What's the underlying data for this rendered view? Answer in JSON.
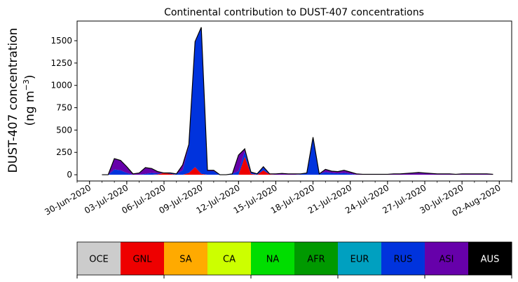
{
  "chart_data": {
    "type": "area",
    "stacked": true,
    "title": "Continental contribution to DUST-407 concentrations",
    "ylabel_line1": "DUST-407 concentration",
    "ylabel_line2": "(ng m",
    "ylabel_exp": "−3",
    "ylabel_close": ")",
    "xlabel": "",
    "ylim": [
      -70,
      1720
    ],
    "y_ticks": [
      0,
      250,
      500,
      750,
      1000,
      1250,
      1500
    ],
    "x_range": [
      "2020-06-29",
      "2020-08-03"
    ],
    "x_tick_labels": [
      "30-Jun-2020",
      "03-Jul-2020",
      "06-Jul-2020",
      "09-Jul-2020",
      "12-Jul-2020",
      "15-Jul-2020",
      "18-Jul-2020",
      "21-Jul-2020",
      "24-Jul-2020",
      "27-Jul-2020",
      "30-Jul-2020",
      "02-Aug-2020"
    ],
    "x_tick_dates": [
      "2020-06-30",
      "2020-07-03",
      "2020-07-06",
      "2020-07-09",
      "2020-07-12",
      "2020-07-15",
      "2020-07-18",
      "2020-07-21",
      "2020-07-24",
      "2020-07-27",
      "2020-07-30",
      "2020-08-02"
    ],
    "x": [
      "2020-07-01",
      "2020-07-01T12:00",
      "2020-07-02",
      "2020-07-02T12:00",
      "2020-07-03",
      "2020-07-03T12:00",
      "2020-07-04",
      "2020-07-04T12:00",
      "2020-07-05",
      "2020-07-05T12:00",
      "2020-07-06",
      "2020-07-06T12:00",
      "2020-07-07",
      "2020-07-07T12:00",
      "2020-07-08",
      "2020-07-08T12:00",
      "2020-07-09",
      "2020-07-09T12:00",
      "2020-07-10",
      "2020-07-10T12:00",
      "2020-07-11",
      "2020-07-11T12:00",
      "2020-07-12",
      "2020-07-12T12:00",
      "2020-07-13",
      "2020-07-13T12:00",
      "2020-07-14",
      "2020-07-14T12:00",
      "2020-07-15",
      "2020-07-15T12:00",
      "2020-07-16",
      "2020-07-16T12:00",
      "2020-07-17",
      "2020-07-17T12:00",
      "2020-07-18",
      "2020-07-18T12:00",
      "2020-07-19",
      "2020-07-19T12:00",
      "2020-07-20",
      "2020-07-20T12:00",
      "2020-07-21",
      "2020-07-21T12:00",
      "2020-07-22",
      "2020-07-22T12:00",
      "2020-07-23",
      "2020-07-23T12:00",
      "2020-07-24",
      "2020-07-24T12:00",
      "2020-07-25",
      "2020-07-25T12:00",
      "2020-07-26",
      "2020-07-26T12:00",
      "2020-07-27",
      "2020-07-27T12:00",
      "2020-07-28",
      "2020-07-28T12:00",
      "2020-07-29",
      "2020-07-29T12:00",
      "2020-07-30",
      "2020-07-30T12:00",
      "2020-07-31",
      "2020-07-31T12:00",
      "2020-08-01",
      "2020-08-01T12:00"
    ],
    "series": [
      {
        "name": "OCE",
        "color": "#cccccc",
        "values": [
          0,
          0,
          0,
          0,
          0,
          0,
          0,
          0,
          0,
          0,
          0,
          0,
          0,
          0,
          0,
          0,
          0,
          0,
          0,
          0,
          0,
          0,
          0,
          0,
          0,
          0,
          0,
          0,
          0,
          0,
          0,
          0,
          0,
          0,
          0,
          0,
          0,
          0,
          0,
          0,
          0,
          0,
          0,
          0,
          0,
          0,
          0,
          0,
          0,
          0,
          0,
          0,
          0,
          0,
          0,
          0,
          0,
          0,
          0,
          0,
          0,
          0,
          0,
          0
        ]
      },
      {
        "name": "GNL",
        "color": "#ee0000",
        "values": [
          0,
          0,
          0,
          0,
          0,
          0,
          0,
          0,
          0,
          5,
          20,
          10,
          0,
          0,
          20,
          85,
          10,
          0,
          0,
          0,
          0,
          0,
          0,
          200,
          10,
          0,
          50,
          5,
          0,
          0,
          0,
          0,
          0,
          0,
          0,
          0,
          0,
          0,
          0,
          0,
          0,
          0,
          0,
          0,
          0,
          0,
          0,
          0,
          0,
          0,
          0,
          0,
          0,
          0,
          0,
          0,
          0,
          0,
          0,
          0,
          0,
          0,
          0,
          0
        ]
      },
      {
        "name": "SA",
        "color": "#ffaa00",
        "values": [
          0,
          0,
          0,
          0,
          0,
          0,
          0,
          0,
          0,
          0,
          0,
          0,
          0,
          0,
          0,
          0,
          0,
          0,
          0,
          0,
          0,
          0,
          0,
          0,
          0,
          0,
          0,
          0,
          0,
          0,
          0,
          0,
          0,
          0,
          0,
          0,
          0,
          0,
          0,
          0,
          0,
          0,
          0,
          0,
          0,
          0,
          0,
          0,
          0,
          0,
          0,
          0,
          0,
          0,
          0,
          0,
          0,
          0,
          0,
          0,
          0,
          0,
          0,
          0
        ]
      },
      {
        "name": "CA",
        "color": "#ccff00",
        "values": [
          0,
          0,
          0,
          0,
          0,
          0,
          0,
          0,
          0,
          0,
          0,
          0,
          0,
          0,
          0,
          0,
          0,
          0,
          0,
          0,
          0,
          0,
          0,
          0,
          0,
          0,
          0,
          0,
          0,
          0,
          0,
          0,
          0,
          0,
          0,
          0,
          0,
          0,
          0,
          0,
          0,
          0,
          0,
          0,
          0,
          0,
          0,
          0,
          0,
          0,
          0,
          0,
          0,
          0,
          0,
          0,
          0,
          0,
          0,
          0,
          0,
          0,
          0,
          0
        ]
      },
      {
        "name": "NA",
        "color": "#00dd00",
        "values": [
          0,
          0,
          0,
          0,
          0,
          0,
          0,
          0,
          0,
          0,
          0,
          0,
          0,
          0,
          0,
          0,
          0,
          0,
          0,
          0,
          0,
          0,
          0,
          0,
          0,
          0,
          0,
          0,
          0,
          0,
          0,
          0,
          0,
          0,
          0,
          0,
          0,
          0,
          0,
          0,
          0,
          0,
          0,
          0,
          0,
          0,
          0,
          0,
          0,
          0,
          0,
          0,
          0,
          0,
          0,
          0,
          0,
          0,
          0,
          0,
          0,
          0,
          0,
          0
        ]
      },
      {
        "name": "AFR",
        "color": "#009900",
        "values": [
          0,
          0,
          0,
          0,
          0,
          0,
          0,
          0,
          0,
          0,
          0,
          0,
          0,
          0,
          0,
          0,
          0,
          0,
          0,
          0,
          0,
          0,
          0,
          0,
          0,
          0,
          0,
          0,
          0,
          0,
          0,
          0,
          0,
          0,
          0,
          0,
          0,
          0,
          0,
          0,
          0,
          0,
          0,
          0,
          0,
          0,
          0,
          0,
          0,
          0,
          0,
          0,
          0,
          0,
          0,
          0,
          0,
          0,
          0,
          0,
          0,
          0,
          0,
          0
        ]
      },
      {
        "name": "EUR",
        "color": "#00a0c0",
        "values": [
          0,
          0,
          0,
          0,
          0,
          0,
          0,
          0,
          0,
          0,
          0,
          0,
          0,
          0,
          0,
          0,
          0,
          0,
          0,
          0,
          0,
          0,
          0,
          0,
          0,
          0,
          0,
          0,
          0,
          0,
          0,
          0,
          0,
          0,
          0,
          0,
          0,
          0,
          0,
          0,
          0,
          0,
          0,
          0,
          0,
          0,
          0,
          0,
          0,
          0,
          0,
          0,
          0,
          0,
          0,
          0,
          0,
          0,
          0,
          0,
          0,
          0,
          0,
          0
        ]
      },
      {
        "name": "RUS",
        "color": "#0033dd",
        "values": [
          0,
          0,
          60,
          50,
          20,
          0,
          0,
          10,
          20,
          10,
          0,
          10,
          10,
          50,
          300,
          1390,
          1640,
          40,
          40,
          0,
          0,
          10,
          40,
          60,
          20,
          10,
          30,
          0,
          0,
          0,
          0,
          0,
          5,
          20,
          420,
          10,
          30,
          20,
          15,
          20,
          10,
          0,
          0,
          0,
          0,
          0,
          0,
          0,
          0,
          0,
          0,
          0,
          0,
          0,
          0,
          0,
          0,
          0,
          0,
          0,
          0,
          0,
          0,
          0
        ]
      },
      {
        "name": "ASI",
        "color": "#6600aa",
        "values": [
          0,
          0,
          120,
          110,
          70,
          10,
          20,
          70,
          50,
          20,
          0,
          0,
          0,
          60,
          20,
          15,
          0,
          10,
          10,
          0,
          0,
          0,
          180,
          30,
          0,
          0,
          10,
          5,
          10,
          15,
          10,
          10,
          5,
          0,
          0,
          0,
          30,
          20,
          20,
          30,
          20,
          10,
          5,
          5,
          5,
          5,
          5,
          10,
          10,
          15,
          20,
          25,
          20,
          15,
          10,
          10,
          10,
          5,
          10,
          10,
          10,
          10,
          10,
          5
        ]
      },
      {
        "name": "AUS",
        "color": "#000000",
        "values": [
          0,
          0,
          0,
          0,
          0,
          0,
          0,
          0,
          0,
          0,
          0,
          0,
          0,
          0,
          0,
          0,
          0,
          0,
          0,
          0,
          0,
          0,
          0,
          0,
          0,
          0,
          0,
          0,
          0,
          0,
          0,
          0,
          0,
          0,
          0,
          0,
          0,
          0,
          0,
          0,
          0,
          0,
          0,
          0,
          0,
          0,
          0,
          0,
          0,
          0,
          0,
          0,
          0,
          0,
          0,
          0,
          0,
          0,
          0,
          0,
          0,
          0,
          0,
          0
        ]
      }
    ],
    "legend": {
      "position": "bottom",
      "entries": [
        {
          "label": "OCE",
          "color": "#cccccc",
          "text_color": "#000000"
        },
        {
          "label": "GNL",
          "color": "#ee0000",
          "text_color": "#000000"
        },
        {
          "label": "SA",
          "color": "#ffaa00",
          "text_color": "#000000"
        },
        {
          "label": "CA",
          "color": "#ccff00",
          "text_color": "#000000"
        },
        {
          "label": "NA",
          "color": "#00dd00",
          "text_color": "#000000"
        },
        {
          "label": "AFR",
          "color": "#009900",
          "text_color": "#000000"
        },
        {
          "label": "EUR",
          "color": "#00a0c0",
          "text_color": "#000000"
        },
        {
          "label": "RUS",
          "color": "#0033dd",
          "text_color": "#000000"
        },
        {
          "label": "ASI",
          "color": "#6600aa",
          "text_color": "#000000"
        },
        {
          "label": "AUS",
          "color": "#000000",
          "text_color": "#ffffff"
        }
      ]
    },
    "grid": false
  }
}
